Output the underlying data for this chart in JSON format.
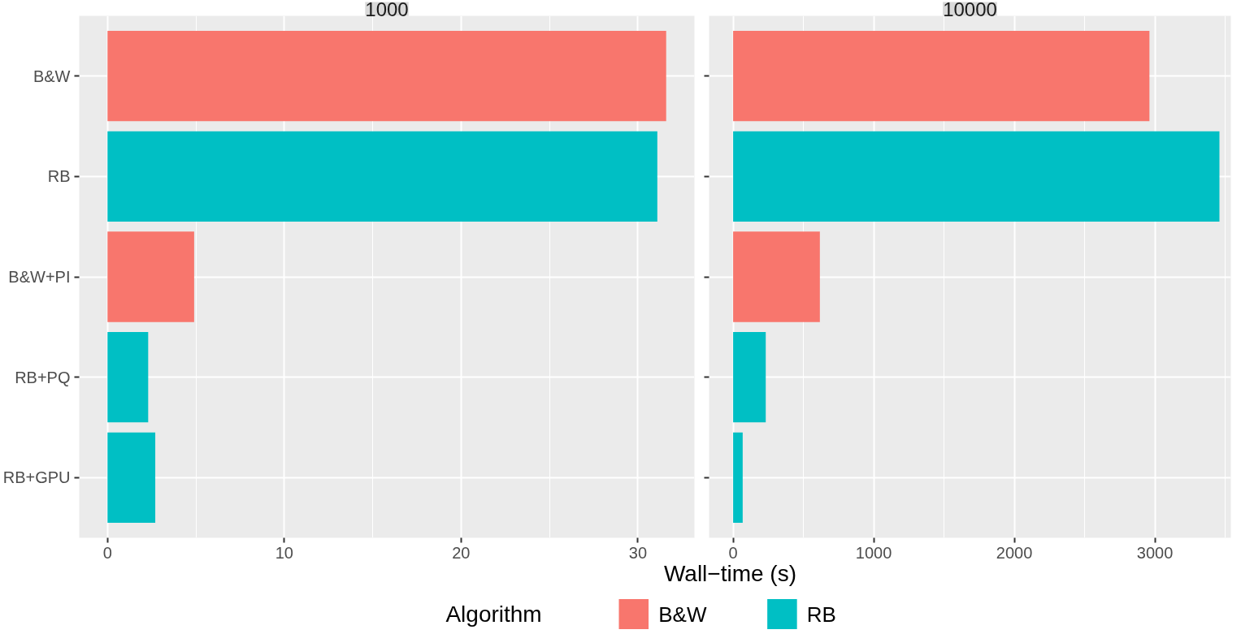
{
  "chart_data": [
    {
      "type": "bar",
      "orientation": "horizontal",
      "title": "1000",
      "categories": [
        "B&W",
        "RB",
        "B&W+PI",
        "RB+PQ",
        "RB+GPU"
      ],
      "series": [
        {
          "name": "B&W",
          "color": "#f8766d",
          "values": [
            31.6,
            null,
            4.9,
            null,
            null
          ]
        },
        {
          "name": "RB",
          "color": "#00bfc4",
          "values": [
            null,
            31.1,
            null,
            2.3,
            2.7
          ]
        }
      ],
      "xlim": [
        -1.6,
        33.2
      ],
      "xticks": [
        0,
        10,
        20,
        30
      ],
      "grid": true,
      "xlabel": "Wall−time (s)",
      "legend_title": "Algorithm",
      "legend": "bottom"
    },
    {
      "type": "bar",
      "orientation": "horizontal",
      "title": "10000",
      "categories": [
        null,
        null,
        null,
        null,
        null
      ],
      "series": [
        {
          "color": "#f8766d",
          "values": [
            2961,
            null,
            617,
            null,
            null
          ]
        },
        {
          "color": "#00bfc4",
          "values": [
            null,
            3459,
            null,
            232,
            68
          ]
        }
      ],
      "xlim": [
        -171,
        3540
      ],
      "xticks": [
        0,
        1000,
        2000,
        3000
      ],
      "grid": true,
      "tick_labels": "x"
    }
  ]
}
